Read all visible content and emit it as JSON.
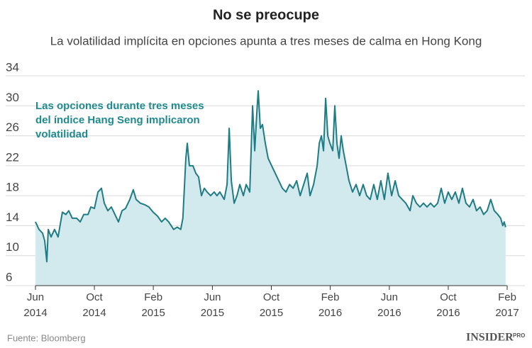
{
  "chart_data": {
    "type": "area-line",
    "title": "No se preocupe",
    "subtitle": "La volatilidad implícita en opciones apunta a tres meses de calma en Hong Kong",
    "annotation": [
      "Las opciones durante tres meses",
      "del índice Hang Seng implicaron",
      "volatilidad"
    ],
    "source": "Fuente: Bloomberg",
    "logo": "INSIDER",
    "logo_suffix": "PRO",
    "color": "#1f7c84",
    "fill_color": "#d2eaed",
    "annotation_color": "#1f8a8e",
    "grid": true,
    "xlim": [
      2014.417,
      2017.083
    ],
    "ylim": [
      6,
      34
    ],
    "yticks": [
      6,
      10,
      14,
      18,
      22,
      26,
      30,
      34
    ],
    "xticks": [
      {
        "value": 2014.417,
        "label": "Jun 2014"
      },
      {
        "value": 2014.75,
        "label": "Oct 2014"
      },
      {
        "value": 2015.083,
        "label": "Feb 2015"
      },
      {
        "value": 2015.417,
        "label": "Jun 2015"
      },
      {
        "value": 2015.75,
        "label": "Oct 2015"
      },
      {
        "value": 2016.083,
        "label": "Feb 2016"
      },
      {
        "value": 2016.417,
        "label": "Jun 2016"
      },
      {
        "value": 2016.75,
        "label": "Oct 2016"
      },
      {
        "value": 2017.083,
        "label": "Feb 2017"
      }
    ],
    "x": [
      2014.417,
      2014.437,
      2014.457,
      2014.469,
      2014.481,
      2014.489,
      2014.505,
      2014.525,
      2014.545,
      2014.569,
      2014.589,
      2014.605,
      2014.625,
      2014.65,
      2014.67,
      2014.69,
      2014.714,
      2014.73,
      2014.75,
      2014.77,
      2014.79,
      2014.806,
      2014.826,
      2014.846,
      2014.866,
      2014.886,
      2014.906,
      2014.926,
      2014.95,
      2014.97,
      2014.986,
      2015.01,
      2015.034,
      2015.058,
      2015.082,
      2015.106,
      2015.13,
      2015.15,
      2015.17,
      2015.198,
      2015.218,
      2015.238,
      2015.25,
      2015.267,
      2015.275,
      2015.287,
      2015.307,
      2015.323,
      2015.339,
      2015.355,
      2015.371,
      2015.387,
      2015.407,
      2015.427,
      2015.443,
      2015.459,
      2015.484,
      2015.5,
      2015.512,
      2015.524,
      2015.54,
      2015.556,
      2015.572,
      2015.592,
      2015.608,
      2015.628,
      2015.644,
      2015.656,
      2015.668,
      2015.676,
      2015.688,
      2015.7,
      2015.716,
      2015.732,
      2015.752,
      2015.772,
      2015.792,
      2015.812,
      2015.833,
      2015.853,
      2015.873,
      2015.893,
      2015.913,
      2015.933,
      2015.953,
      2015.969,
      2015.989,
      2016.009,
      2016.021,
      2016.033,
      2016.045,
      2016.057,
      2016.069,
      2016.081,
      2016.097,
      2016.109,
      2016.121,
      2016.133,
      2016.145,
      2016.157,
      2016.173,
      2016.189,
      2016.209,
      2016.229,
      2016.249,
      2016.269,
      2016.289,
      2016.309,
      2016.329,
      2016.349,
      2016.369,
      2016.389,
      2016.409,
      2016.43,
      2016.45,
      2016.47,
      2016.49,
      2016.51,
      2016.534,
      2016.55,
      2016.57,
      2016.59,
      2016.61,
      2016.63,
      2016.65,
      2016.67,
      2016.69,
      2016.71,
      2016.73,
      2016.75,
      2016.77,
      2016.79,
      2016.81,
      2016.83,
      2016.85,
      2016.87,
      2016.89,
      2016.91,
      2016.93,
      2016.95,
      2016.97,
      2016.99,
      2017.01,
      2017.03,
      2017.046,
      2017.058,
      2017.066,
      2017.074
    ],
    "values": [
      14.5,
      13.5,
      13,
      12,
      9.2,
      13.5,
      12.5,
      13.5,
      12.5,
      15.8,
      15.5,
      16,
      15,
      15,
      14.5,
      15.5,
      15.5,
      16.5,
      16.3,
      18.5,
      19,
      17,
      16,
      16.5,
      15.5,
      14.5,
      16,
      16.3,
      17.5,
      18.8,
      17.5,
      17,
      16.8,
      16.5,
      15.8,
      15.3,
      14.5,
      15,
      14.5,
      13.5,
      13.8,
      13.5,
      15,
      23,
      25,
      22,
      22,
      21,
      20.5,
      18,
      19,
      18.5,
      18,
      18.5,
      18,
      18.5,
      17.5,
      19.5,
      27,
      20,
      17,
      18,
      19.5,
      18,
      19.5,
      18.5,
      30,
      24,
      29,
      32,
      27,
      27.5,
      25,
      23,
      22,
      21,
      20,
      19,
      18.5,
      19.5,
      19,
      20,
      18,
      19.5,
      21,
      18,
      19.5,
      22,
      25,
      26,
      24,
      31,
      26,
      25,
      24,
      30,
      25,
      23,
      26,
      24,
      22,
      20,
      18.5,
      19.5,
      18,
      19.5,
      18,
      17.5,
      19.5,
      17.5,
      20,
      17.5,
      21,
      18,
      20,
      18,
      17.5,
      17,
      16,
      18,
      17,
      16.5,
      17,
      16.5,
      17,
      16.5,
      17,
      19,
      17,
      18.5,
      17.5,
      18.5,
      17,
      19,
      17,
      16.5,
      17.5,
      16,
      16.5,
      15.5,
      16,
      17.5,
      16,
      15.5,
      15,
      14,
      14.5,
      13.8
    ]
  }
}
